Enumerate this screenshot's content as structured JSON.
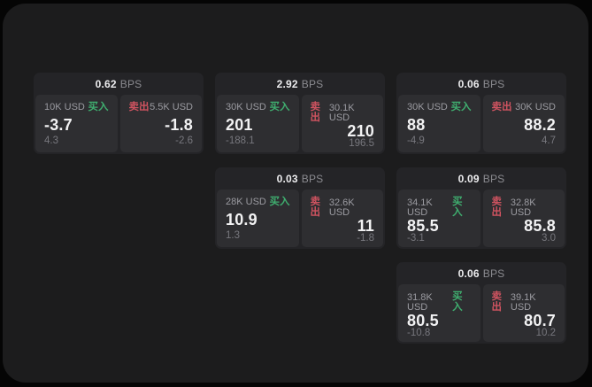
{
  "colors": {
    "page_background": "#050505",
    "panel_background": "#1c1c1d",
    "card_background": "#242427",
    "subcard_background": "#2e2e31",
    "value_text": "#f2f2f3",
    "label_text": "#9b9ba1",
    "muted_text": "#77777d",
    "header_unit_text": "#8b8b90",
    "buy_green": "#3fae6f",
    "sell_red": "#cf5360"
  },
  "labels": {
    "bps_unit": "BPS",
    "buy": "买入",
    "sell": "卖出"
  },
  "cards": [
    {
      "bps": "0.62",
      "grid": {
        "row": 1,
        "col": 1
      },
      "buy": {
        "amount": "10K USD",
        "value": "-3.7",
        "delta": "4.3"
      },
      "sell": {
        "amount": "5.5K USD",
        "value": "-1.8",
        "delta": "-2.6"
      }
    },
    {
      "bps": "2.92",
      "grid": {
        "row": 1,
        "col": 2
      },
      "buy": {
        "amount": "30K USD",
        "value": "201",
        "delta": "-188.1"
      },
      "sell": {
        "amount": "30.1K USD",
        "value": "210",
        "delta": "196.5"
      }
    },
    {
      "bps": "0.06",
      "grid": {
        "row": 1,
        "col": 3
      },
      "buy": {
        "amount": "30K USD",
        "value": "88",
        "delta": "-4.9"
      },
      "sell": {
        "amount": "30K USD",
        "value": "88.2",
        "delta": "4.7"
      }
    },
    {
      "bps": "0.03",
      "grid": {
        "row": 2,
        "col": 2
      },
      "buy": {
        "amount": "28K USD",
        "value": "10.9",
        "delta": "1.3"
      },
      "sell": {
        "amount": "32.6K USD",
        "value": "11",
        "delta": "-1.8"
      }
    },
    {
      "bps": "0.09",
      "grid": {
        "row": 2,
        "col": 3
      },
      "buy": {
        "amount": "34.1K USD",
        "value": "85.5",
        "delta": "-3.1"
      },
      "sell": {
        "amount": "32.8K USD",
        "value": "85.8",
        "delta": "3.0"
      }
    },
    {
      "bps": "0.06",
      "grid": {
        "row": 3,
        "col": 3
      },
      "buy": {
        "amount": "31.8K USD",
        "value": "80.5",
        "delta": "-10.8"
      },
      "sell": {
        "amount": "39.1K USD",
        "value": "80.7",
        "delta": "10.2"
      }
    }
  ]
}
